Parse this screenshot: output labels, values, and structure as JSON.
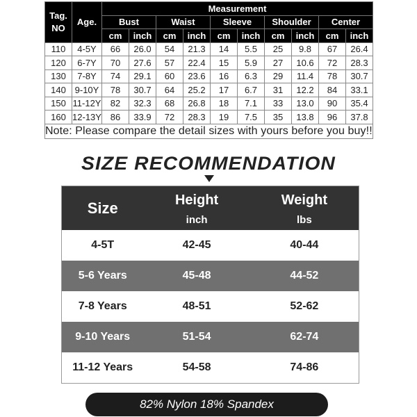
{
  "measurement_table": {
    "tag_header": "Tag.\nNO",
    "age_header": "Age.",
    "group_header": "Measurement",
    "measures": [
      "Bust",
      "Waist",
      "Sleeve",
      "Shoulder",
      "Center"
    ],
    "units": [
      "cm",
      "inch"
    ],
    "rows": [
      [
        "110",
        "4-5Y",
        "66",
        "26.0",
        "54",
        "21.3",
        "14",
        "5.5",
        "25",
        "9.8",
        "67",
        "26.4"
      ],
      [
        "120",
        "6-7Y",
        "70",
        "27.6",
        "57",
        "22.4",
        "15",
        "5.9",
        "27",
        "10.6",
        "72",
        "28.3"
      ],
      [
        "130",
        "7-8Y",
        "74",
        "29.1",
        "60",
        "23.6",
        "16",
        "6.3",
        "29",
        "11.4",
        "78",
        "30.7"
      ],
      [
        "140",
        "9-10Y",
        "78",
        "30.7",
        "64",
        "25.2",
        "17",
        "6.7",
        "31",
        "12.2",
        "84",
        "33.1"
      ],
      [
        "150",
        "11-12Y",
        "82",
        "32.3",
        "68",
        "26.8",
        "18",
        "7.1",
        "33",
        "13.0",
        "90",
        "35.4"
      ],
      [
        "160",
        "12-13Y",
        "86",
        "33.9",
        "72",
        "28.3",
        "19",
        "7.5",
        "35",
        "13.8",
        "96",
        "37.8"
      ]
    ],
    "note": "Note: Please compare the detail sizes with yours before you buy!!"
  },
  "recommendation": {
    "title": "SIZE RECOMMENDATION",
    "headers": {
      "size": "Size",
      "height": "Height",
      "height_unit": "inch",
      "weight": "Weight",
      "weight_unit": "lbs"
    },
    "rows": [
      [
        "4-5T",
        "42-45",
        "40-44"
      ],
      [
        "5-6 Years",
        "45-48",
        "44-52"
      ],
      [
        "7-8 Years",
        "48-51",
        "52-62"
      ],
      [
        "9-10 Years",
        "51-54",
        "62-74"
      ],
      [
        "11-12 Years",
        "54-58",
        "74-86"
      ]
    ],
    "colors": {
      "header": "#333333",
      "stripe": "#717071"
    }
  },
  "material": "82% Nylon 18% Spandex"
}
